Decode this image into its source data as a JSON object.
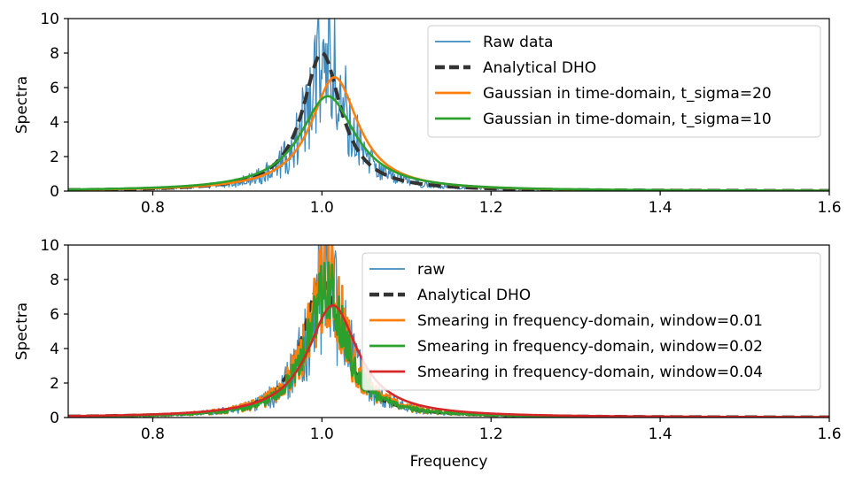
{
  "chart_data": [
    {
      "type": "line",
      "xlabel": "",
      "ylabel": "Spectra",
      "xlim": [
        0.7,
        1.6
      ],
      "ylim": [
        0,
        10
      ],
      "xticks": [
        "0.8",
        "1.0",
        "1.2",
        "1.4",
        "1.6"
      ],
      "yticks": [
        "0",
        "2",
        "4",
        "6",
        "8",
        "10"
      ],
      "legend_position": "top-right",
      "series": [
        {
          "name": "Raw data",
          "color": "#1f77b4",
          "style": "thin",
          "peak_center": 1.005,
          "peak_height": 8.0,
          "width": 0.0275,
          "noise": 1.0
        },
        {
          "name": "Analytical DHO",
          "color": "#333333",
          "style": "dashed",
          "peak_center": 1.0,
          "peak_height": 8.0,
          "width": 0.0275
        },
        {
          "name": "Gaussian in time-domain, t_sigma=20",
          "color": "#ff7f0e",
          "style": "solid",
          "peak_center": 1.015,
          "peak_height": 6.6,
          "width": 0.034
        },
        {
          "name": "Gaussian in time-domain, t_sigma=10",
          "color": "#2ca02c",
          "style": "solid",
          "peak_center": 1.007,
          "peak_height": 5.5,
          "width": 0.04
        }
      ]
    },
    {
      "type": "line",
      "xlabel": "Frequency",
      "ylabel": "Spectra",
      "xlim": [
        0.7,
        1.6
      ],
      "ylim": [
        0,
        10
      ],
      "xticks": [
        "0.8",
        "1.0",
        "1.2",
        "1.4",
        "1.6"
      ],
      "yticks": [
        "0",
        "2",
        "4",
        "6",
        "8",
        "10"
      ],
      "legend_position": "top-right",
      "series": [
        {
          "name": "raw",
          "color": "#1f77b4",
          "style": "thin",
          "peak_center": 1.005,
          "peak_height": 8.0,
          "width": 0.0275,
          "noise": 1.0
        },
        {
          "name": "Analytical DHO",
          "color": "#333333",
          "style": "dashed",
          "peak_center": 1.0,
          "peak_height": 8.0,
          "width": 0.0275
        },
        {
          "name": "Smearing in frequency-domain, window=0.01",
          "color": "#ff7f0e",
          "style": "solid",
          "peak_center": 1.005,
          "peak_height": 8.0,
          "width": 0.0275,
          "noise": 0.75
        },
        {
          "name": "Smearing in frequency-domain, window=0.02",
          "color": "#2ca02c",
          "style": "solid",
          "peak_center": 1.005,
          "peak_height": 7.5,
          "width": 0.0275,
          "noise": 0.5
        },
        {
          "name": "Smearing in frequency-domain, window=0.04",
          "color": "#d62728",
          "style": "solid",
          "peak_center": 1.013,
          "peak_height": 6.5,
          "width": 0.036
        }
      ]
    }
  ]
}
